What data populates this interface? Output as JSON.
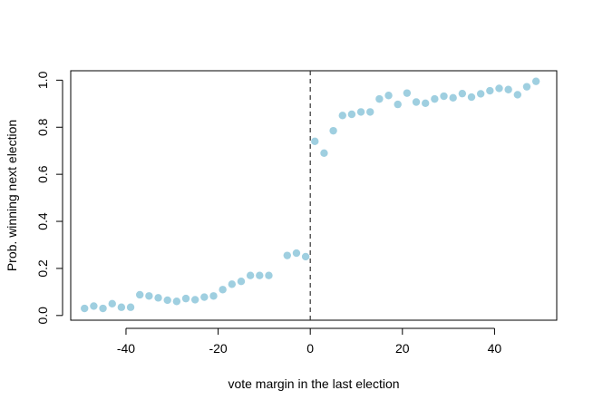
{
  "chart_data": {
    "type": "scatter",
    "xlabel": "vote margin in the last election",
    "ylabel": "Prob. winning next election",
    "xlim": [
      -52,
      53.5
    ],
    "ylim": [
      -0.02,
      1.04
    ],
    "xticks": [
      -40,
      -20,
      0,
      20,
      40
    ],
    "yticks": [
      0.0,
      0.2,
      0.4,
      0.6,
      0.8,
      1.0
    ],
    "xtick_labels": [
      "-40",
      "-20",
      "0",
      "20",
      "40"
    ],
    "ytick_labels": [
      "0.0",
      "0.2",
      "0.4",
      "0.6",
      "0.8",
      "1.0"
    ],
    "cutoff_x": 0,
    "point_color": "#9fcfe0",
    "grid": false,
    "points": [
      {
        "x": -49,
        "y": 0.03
      },
      {
        "x": -47,
        "y": 0.04
      },
      {
        "x": -45,
        "y": 0.03
      },
      {
        "x": -43,
        "y": 0.05
      },
      {
        "x": -41,
        "y": 0.035
      },
      {
        "x": -39,
        "y": 0.035
      },
      {
        "x": -37,
        "y": 0.088
      },
      {
        "x": -35,
        "y": 0.083
      },
      {
        "x": -33,
        "y": 0.075
      },
      {
        "x": -31,
        "y": 0.065
      },
      {
        "x": -29,
        "y": 0.06
      },
      {
        "x": -27,
        "y": 0.072
      },
      {
        "x": -25,
        "y": 0.067
      },
      {
        "x": -23,
        "y": 0.078
      },
      {
        "x": -21,
        "y": 0.083
      },
      {
        "x": -19,
        "y": 0.11
      },
      {
        "x": -17,
        "y": 0.133
      },
      {
        "x": -15,
        "y": 0.145
      },
      {
        "x": -13,
        "y": 0.17
      },
      {
        "x": -11,
        "y": 0.17
      },
      {
        "x": -9,
        "y": 0.17
      },
      {
        "x": -5,
        "y": 0.255
      },
      {
        "x": -3,
        "y": 0.265
      },
      {
        "x": -1,
        "y": 0.25
      },
      {
        "x": 1,
        "y": 0.74
      },
      {
        "x": 3,
        "y": 0.69
      },
      {
        "x": 5,
        "y": 0.785
      },
      {
        "x": 7,
        "y": 0.85
      },
      {
        "x": 9,
        "y": 0.855
      },
      {
        "x": 11,
        "y": 0.865
      },
      {
        "x": 13,
        "y": 0.865
      },
      {
        "x": 15,
        "y": 0.92
      },
      {
        "x": 17,
        "y": 0.935
      },
      {
        "x": 19,
        "y": 0.897
      },
      {
        "x": 21,
        "y": 0.945
      },
      {
        "x": 23,
        "y": 0.907
      },
      {
        "x": 25,
        "y": 0.902
      },
      {
        "x": 27,
        "y": 0.92
      },
      {
        "x": 29,
        "y": 0.932
      },
      {
        "x": 31,
        "y": 0.925
      },
      {
        "x": 33,
        "y": 0.943
      },
      {
        "x": 35,
        "y": 0.928
      },
      {
        "x": 37,
        "y": 0.942
      },
      {
        "x": 39,
        "y": 0.955
      },
      {
        "x": 41,
        "y": 0.965
      },
      {
        "x": 43,
        "y": 0.96
      },
      {
        "x": 45,
        "y": 0.938
      },
      {
        "x": 47,
        "y": 0.972
      },
      {
        "x": 49,
        "y": 0.995
      }
    ]
  }
}
